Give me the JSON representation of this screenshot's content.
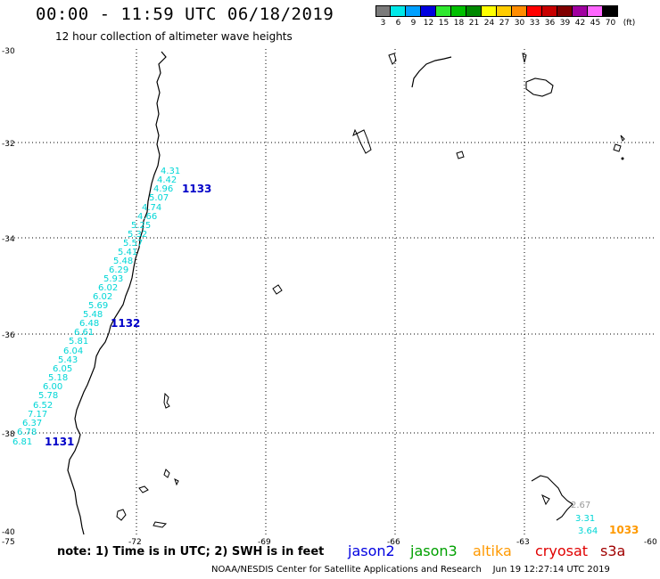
{
  "header": {
    "title": "00:00 - 11:59 UTC 06/18/2019",
    "subtitle": "12 hour collection of altimeter wave heights"
  },
  "colorbar": {
    "unit_label": "(ft)",
    "bins": [
      {
        "label": "3",
        "color": "#7b7b7b"
      },
      {
        "label": "6",
        "color": "#00e8e8"
      },
      {
        "label": "9",
        "color": "#00a0ff"
      },
      {
        "label": "12",
        "color": "#0000e0"
      },
      {
        "label": "15",
        "color": "#30e830"
      },
      {
        "label": "18",
        "color": "#00c000"
      },
      {
        "label": "21",
        "color": "#008800"
      },
      {
        "label": "24",
        "color": "#ffff00"
      },
      {
        "label": "27",
        "color": "#ffcc00"
      },
      {
        "label": "30",
        "color": "#ff8c00"
      },
      {
        "label": "33",
        "color": "#ff0000"
      },
      {
        "label": "36",
        "color": "#c80000"
      },
      {
        "label": "39",
        "color": "#800000"
      },
      {
        "label": "42",
        "color": "#a000a0"
      },
      {
        "label": "45",
        "color": "#ff66ff"
      },
      {
        "label": "70",
        "color": "#000000"
      }
    ]
  },
  "axes": {
    "lat_labels": [
      "-30",
      "-32",
      "-34",
      "-36",
      "-38",
      "-40"
    ],
    "lon_labels": [
      "-75",
      "-72",
      "-69",
      "-66",
      "-63",
      "-60"
    ]
  },
  "observations": {
    "track_main": [
      "4.31",
      "4.42",
      "4.96",
      "5.07",
      "4.74",
      "4.66",
      "5.25",
      "5.32",
      "5.57",
      "5.41",
      "5.48",
      "6.29",
      "5.93",
      "6.02",
      "6.02",
      "5.69",
      "5.48",
      "6.48",
      "6.61",
      "5.81",
      "6.04",
      "5.43",
      "6.05",
      "5.18",
      "6.00",
      "5.78",
      "6.52",
      "7.17",
      "6.37",
      "6.78",
      "6.81"
    ],
    "track_se": [
      {
        "value": "2.67",
        "color": "gray"
      },
      {
        "value": "3.31",
        "color": "cyan"
      },
      {
        "value": "3.64",
        "color": "cyan"
      }
    ],
    "pass_labels": [
      {
        "text": "1133",
        "color": "#0000c8"
      },
      {
        "text": "1132",
        "color": "#0000c8"
      },
      {
        "text": "1131",
        "color": "#0000c8"
      },
      {
        "text": "1033",
        "color": "#ff9900"
      }
    ]
  },
  "footer": {
    "note": "note: 1) Time is in UTC; 2) SWH is in feet",
    "legend": [
      {
        "name": "jason2",
        "color": "#0000e0"
      },
      {
        "name": "jason3",
        "color": "#00a000"
      },
      {
        "name": "altika",
        "color": "#ff9900"
      },
      {
        "name": "cryosat",
        "color": "#e00000"
      },
      {
        "name": "s3a",
        "color": "#a00000"
      }
    ],
    "credit": "NOAA/NESDIS Center for Satellite Applications and Research    Jun 19 12:27:14 UTC 2019"
  }
}
